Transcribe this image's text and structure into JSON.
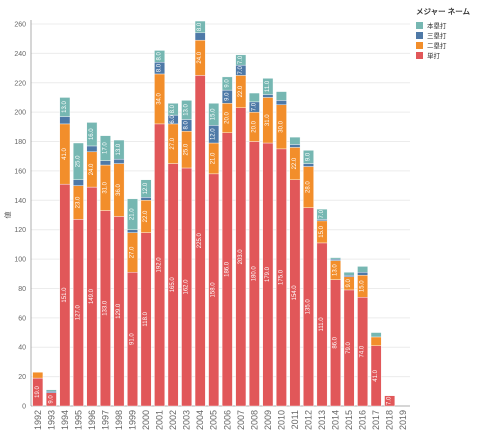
{
  "chart_data": {
    "type": "bar",
    "stacked": true,
    "ylabel": "値",
    "ylim": [
      0,
      260
    ],
    "yticks": [
      0,
      20,
      40,
      60,
      80,
      100,
      120,
      140,
      160,
      180,
      200,
      220,
      240,
      260
    ],
    "categories": [
      "1992",
      "1993",
      "1994",
      "1995",
      "1996",
      "1997",
      "1998",
      "1999",
      "2000",
      "2001",
      "2002",
      "2003",
      "2004",
      "2005",
      "2006",
      "2007",
      "2008",
      "2009",
      "2010",
      "2011",
      "2012",
      "2013",
      "2014",
      "2015",
      "2016",
      "2017",
      "2018",
      "2019"
    ],
    "grid": true,
    "legend": {
      "title": "メジャー ネーム",
      "position": "top-right",
      "items": [
        {
          "name": "本塁打",
          "color": "#76b7b2"
        },
        {
          "name": "三塁打",
          "color": "#4e79a7"
        },
        {
          "name": "二塁打",
          "color": "#f28e2b"
        },
        {
          "name": "単打",
          "color": "#e15759"
        }
      ]
    },
    "series": [
      {
        "name": "単打",
        "color": "#e15759",
        "values": [
          19,
          9,
          151,
          127,
          149,
          133,
          129,
          91,
          118,
          192,
          165,
          162,
          225,
          158,
          186,
          203,
          180,
          179,
          175,
          154,
          135,
          111,
          86,
          79,
          74,
          41,
          7,
          null
        ]
      },
      {
        "name": "二塁打",
        "color": "#f28e2b",
        "values": [
          4,
          0,
          41,
          23,
          24,
          31,
          36,
          27,
          22,
          34,
          27,
          25,
          24,
          21,
          20,
          22,
          20,
          31,
          30,
          22,
          28,
          15,
          13,
          9,
          15,
          6,
          0,
          null
        ]
      },
      {
        "name": "三塁打",
        "color": "#4e79a7",
        "values": [
          0,
          1,
          5,
          4,
          4,
          3,
          3,
          2,
          2,
          8,
          6,
          8,
          5,
          12,
          9,
          7,
          7,
          2,
          3,
          2,
          2,
          1,
          1,
          1,
          2,
          0,
          0,
          null
        ]
      },
      {
        "name": "本塁打",
        "color": "#76b7b2",
        "values": [
          0,
          1,
          13,
          25,
          16,
          17,
          13,
          21,
          12,
          8,
          8,
          13,
          8,
          15,
          9,
          7,
          6,
          11,
          6,
          5,
          9,
          7,
          1,
          2,
          4,
          3,
          0,
          null
        ]
      }
    ],
    "labels": [
      {
        "series": "単打",
        "min_value": 5
      },
      {
        "series": "二塁打",
        "min_value": 9
      },
      {
        "series": "三塁打",
        "min_value": 6
      },
      {
        "series": "本塁打",
        "min_value": 7
      }
    ]
  }
}
